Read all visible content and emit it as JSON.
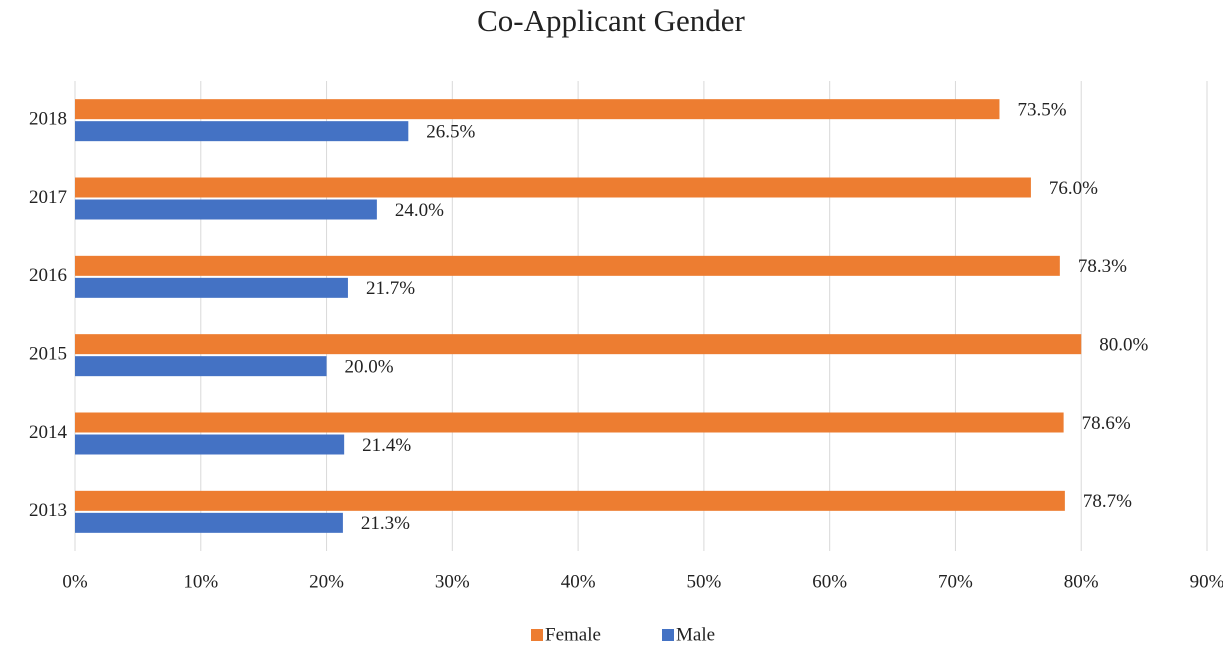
{
  "chart_data": {
    "type": "hbar",
    "title": "Co-Applicant Gender",
    "categories": [
      "2013",
      "2014",
      "2015",
      "2016",
      "2017",
      "2018"
    ],
    "series": [
      {
        "name": "Female",
        "color": "#ed7d31",
        "values": [
          78.7,
          78.6,
          80.0,
          78.3,
          76.0,
          73.5
        ],
        "value_labels": [
          "78.7%",
          "78.6%",
          "80.0%",
          "78.3%",
          "76.0%",
          "73.5%"
        ]
      },
      {
        "name": "Male",
        "color": "#4472c4",
        "values": [
          21.3,
          21.4,
          20.0,
          21.7,
          24.0,
          26.5
        ],
        "value_labels": [
          "21.3%",
          "21.4%",
          "20.0%",
          "21.7%",
          "24.0%",
          "26.5%"
        ]
      }
    ],
    "xlim": [
      0,
      90
    ],
    "xticks": [
      {
        "value": 0,
        "label": "0%"
      },
      {
        "value": 10,
        "label": "10%"
      },
      {
        "value": 20,
        "label": "20%"
      },
      {
        "value": 30,
        "label": "30%"
      },
      {
        "value": 40,
        "label": "40%"
      },
      {
        "value": 50,
        "label": "50%"
      },
      {
        "value": 60,
        "label": "60%"
      },
      {
        "value": 70,
        "label": "70%"
      },
      {
        "value": 80,
        "label": "80%"
      },
      {
        "value": 90,
        "label": "90%"
      }
    ],
    "grid": true,
    "legend": "bottom"
  }
}
